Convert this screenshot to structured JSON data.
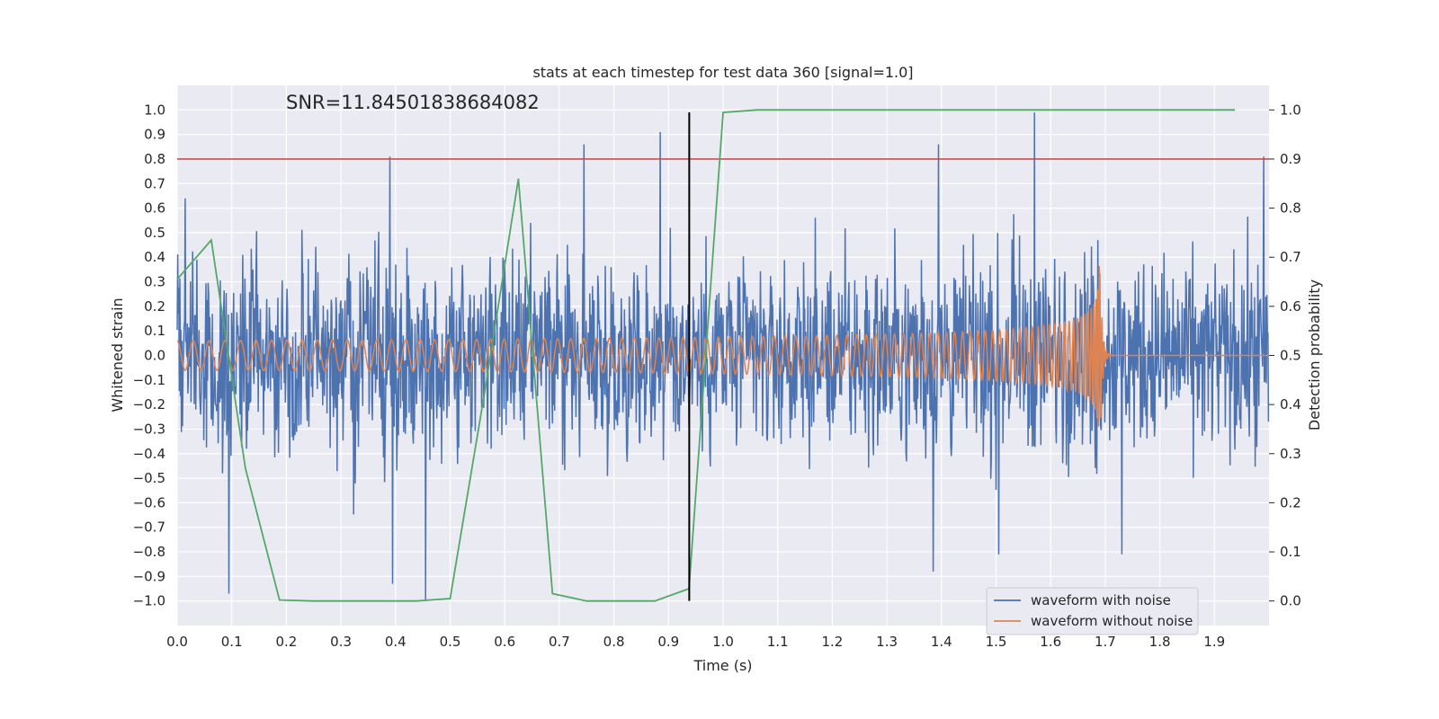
{
  "chart_data": {
    "type": "line",
    "title": "stats at each timestep for test data 360 [signal=1.0]",
    "annotation": "SNR=11.84501838684082",
    "xlabel": "Time (s)",
    "ylabel": "Whitened strain",
    "y2label": "Detection probability",
    "xlim": [
      0.0,
      2.0
    ],
    "ylim": [
      -1.1,
      1.1
    ],
    "y2lim": [
      -0.05,
      1.05
    ],
    "x_ticks": [
      "0.0",
      "0.1",
      "0.2",
      "0.3",
      "0.4",
      "0.5",
      "0.6",
      "0.7",
      "0.8",
      "0.9",
      "1.0",
      "1.1",
      "1.2",
      "1.3",
      "1.4",
      "1.5",
      "1.6",
      "1.7",
      "1.8",
      "1.9"
    ],
    "y_ticks": [
      "−1.0",
      "−0.9",
      "−0.8",
      "−0.7",
      "−0.6",
      "−0.5",
      "−0.4",
      "−0.3",
      "−0.2",
      "−0.1",
      "0.0",
      "0.1",
      "0.2",
      "0.3",
      "0.4",
      "0.5",
      "0.6",
      "0.7",
      "0.8",
      "0.9",
      "1.0"
    ],
    "y2_ticks": [
      "0.0",
      "0.1",
      "0.2",
      "0.3",
      "0.4",
      "0.5",
      "0.6",
      "0.7",
      "0.8",
      "0.9",
      "1.0"
    ],
    "grid": true,
    "legend_position": "bottom-right",
    "threshold": {
      "y2": 0.9,
      "color": "#c44e52"
    },
    "event_line": {
      "x": 0.938,
      "color": "#000000"
    },
    "series": [
      {
        "name": "waveform with noise",
        "color": "#4c72b0",
        "axis": "left",
        "kind": "noise",
        "peaks": [
          {
            "x": 0.015,
            "y": 0.64
          },
          {
            "x": 0.095,
            "y": -0.97
          },
          {
            "x": 0.39,
            "y": 0.81
          },
          {
            "x": 0.395,
            "y": -0.93
          },
          {
            "x": 0.455,
            "y": -1.0
          },
          {
            "x": 0.745,
            "y": 0.86
          },
          {
            "x": 0.885,
            "y": 0.91
          },
          {
            "x": 1.395,
            "y": 0.86
          },
          {
            "x": 1.385,
            "y": -0.88
          },
          {
            "x": 1.57,
            "y": 0.99
          },
          {
            "x": 1.505,
            "y": -0.81
          },
          {
            "x": 1.73,
            "y": -0.81
          },
          {
            "x": 1.99,
            "y": 0.81
          }
        ],
        "typical_amplitude": 0.35
      },
      {
        "name": "waveform without noise",
        "color": "#dd8452",
        "axis": "left",
        "kind": "chirp",
        "merger_time": 1.69,
        "amplitude_start": 0.06,
        "amplitude_peak": 0.42,
        "frequency_start_hz": 34
      },
      {
        "name": "detection probability",
        "color": "#55a868",
        "axis": "right",
        "kind": "polyline",
        "x": [
          0.0,
          0.0625,
          0.125,
          0.1875,
          0.25,
          0.3125,
          0.375,
          0.4375,
          0.5,
          0.5625,
          0.625,
          0.6875,
          0.75,
          0.8125,
          0.875,
          0.9375,
          1.0,
          1.0625,
          1.125,
          1.1875,
          1.25,
          1.3125,
          1.375,
          1.4375,
          1.5,
          1.5625,
          1.625,
          1.6875,
          1.75,
          1.8125,
          1.875,
          1.9375
        ],
        "values": [
          0.655,
          0.735,
          0.27,
          0.002,
          0.0,
          0.0,
          0.0,
          0.0,
          0.005,
          0.42,
          0.86,
          0.015,
          0.0,
          0.0,
          0.0,
          0.025,
          0.995,
          1.0,
          1.0,
          1.0,
          1.0,
          1.0,
          1.0,
          1.0,
          1.0,
          1.0,
          1.0,
          1.0,
          1.0,
          1.0,
          1.0,
          1.0
        ]
      }
    ]
  }
}
